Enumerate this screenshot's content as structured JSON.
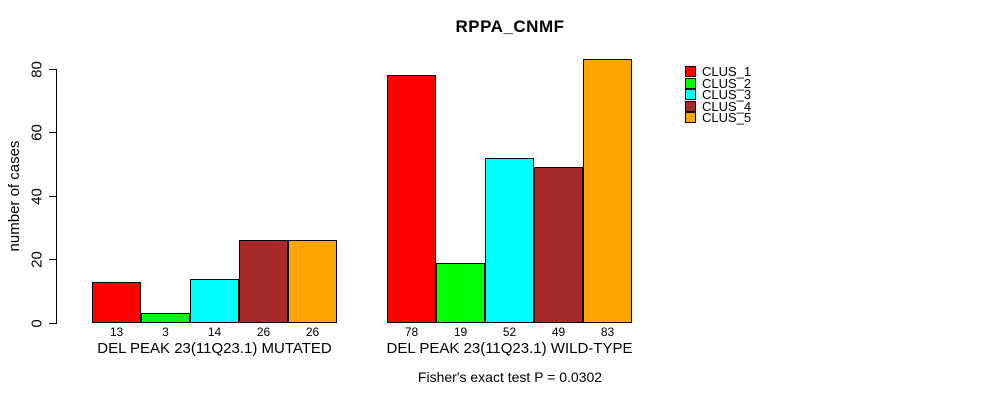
{
  "title": "RPPA_CNMF",
  "footer": "Fisher's exact test P = 0.0302",
  "chart_data": {
    "type": "bar",
    "title": "RPPA_CNMF",
    "xlabel": "",
    "ylabel": "number of cases",
    "ylim": [
      0,
      80
    ],
    "yticks": [
      0,
      20,
      40,
      60,
      80
    ],
    "grid": false,
    "legend_position": "right",
    "background": "#ffffff",
    "bar_border_color": "#000000",
    "categories": [
      "DEL PEAK 23(11Q23.1) MUTATED",
      "DEL PEAK 23(11Q23.1) WILD-TYPE"
    ],
    "series": [
      {
        "name": "CLUS_1",
        "color": "#FF0000",
        "values": [
          13,
          78
        ]
      },
      {
        "name": "CLUS_2",
        "color": "#00FF00",
        "values": [
          3,
          19
        ]
      },
      {
        "name": "CLUS_3",
        "color": "#00FFFF",
        "values": [
          14,
          52
        ]
      },
      {
        "name": "CLUS_4",
        "color": "#A52A2A",
        "values": [
          26,
          49
        ]
      },
      {
        "name": "CLUS_5",
        "color": "#FFA500",
        "values": [
          26,
          83
        ]
      }
    ],
    "value_labels": {
      "DEL PEAK 23(11Q23.1) MUTATED": [
        13,
        3,
        14,
        26,
        26
      ],
      "DEL PEAK 23(11Q23.1) WILD-TYPE": [
        78,
        19,
        52,
        49,
        83
      ]
    },
    "annotation": "Fisher's exact test P = 0.0302"
  }
}
